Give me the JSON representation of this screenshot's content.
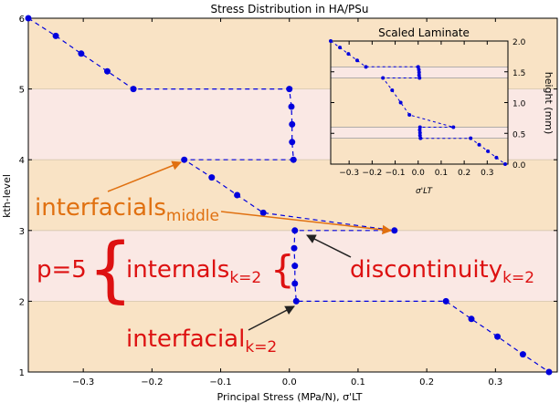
{
  "chart_data": [
    {
      "type": "line",
      "title": "Stress Distribution in HA/PSu",
      "xlabel": "Principal Stress (MPa/N), σ'LT",
      "ylabel": "kth-level",
      "xlim": [
        -0.38,
        0.39
      ],
      "ylim": [
        1,
        6
      ],
      "xticks": [
        "−0.3",
        "−0.2",
        "−0.1",
        "0.0",
        "0.1",
        "0.2",
        "0.3"
      ],
      "xtick_values": [
        -0.3,
        -0.2,
        -0.1,
        0.0,
        0.1,
        0.2,
        0.3
      ],
      "yticks": [
        "1",
        "2",
        "3",
        "4",
        "5",
        "6"
      ],
      "ytick_values": [
        1,
        2,
        3,
        4,
        5,
        6
      ],
      "bands": [
        {
          "from": 1,
          "to": 2,
          "color": "#f9e3c5"
        },
        {
          "from": 2,
          "to": 3,
          "color": "#fae8e4"
        },
        {
          "from": 3,
          "to": 4,
          "color": "#f9e3c5"
        },
        {
          "from": 4,
          "to": 5,
          "color": "#fae8e4"
        },
        {
          "from": 5,
          "to": 6,
          "color": "#f9e3c5"
        }
      ],
      "series": [
        {
          "color": "#0000dd",
          "style": "dashed-with-markers",
          "points": [
            {
              "x": -0.38,
              "y": 6.0
            },
            {
              "x": -0.34,
              "y": 5.75
            },
            {
              "x": -0.303,
              "y": 5.5
            },
            {
              "x": -0.265,
              "y": 5.25
            },
            {
              "x": -0.227,
              "y": 5.0
            },
            {
              "x": 0.0,
              "y": 5.0
            },
            {
              "x": 0.003,
              "y": 4.75
            },
            {
              "x": 0.004,
              "y": 4.5
            },
            {
              "x": 0.004,
              "y": 4.25
            },
            {
              "x": 0.006,
              "y": 4.0
            },
            {
              "x": -0.153,
              "y": 4.0
            },
            {
              "x": -0.113,
              "y": 3.75
            },
            {
              "x": -0.076,
              "y": 3.5
            },
            {
              "x": -0.038,
              "y": 3.25
            },
            {
              "x": 0.153,
              "y": 3.0
            },
            {
              "x": 0.008,
              "y": 3.0
            },
            {
              "x": 0.007,
              "y": 2.75
            },
            {
              "x": 0.008,
              "y": 2.5
            },
            {
              "x": 0.008,
              "y": 2.25
            },
            {
              "x": 0.01,
              "y": 2.0
            },
            {
              "x": 0.228,
              "y": 2.0
            },
            {
              "x": 0.265,
              "y": 1.75
            },
            {
              "x": 0.303,
              "y": 1.5
            },
            {
              "x": 0.34,
              "y": 1.25
            },
            {
              "x": 0.378,
              "y": 1.0
            }
          ]
        }
      ],
      "annotations": [
        {
          "text": "interfacials",
          "sub": "middle",
          "color": "#e07010"
        },
        {
          "text": "p=5",
          "color": "#dd1111"
        },
        {
          "text": "internals",
          "sub": "k=2",
          "color": "#dd1111"
        },
        {
          "text": "discontinuity",
          "sub": "k=2",
          "color": "#dd1111"
        },
        {
          "text": "interfacial",
          "sub": "k=2",
          "color": "#dd1111"
        }
      ]
    },
    {
      "type": "line",
      "title": "Scaled Laminate",
      "xlabel": "σ'LT",
      "ylabel": "height (mm)",
      "xlim": [
        -0.38,
        0.39
      ],
      "ylim": [
        0,
        2
      ],
      "xticks": [
        "−0.3",
        "−0.2",
        "−0.1",
        "0.0",
        "0.1",
        "0.2",
        "0.3"
      ],
      "xtick_values": [
        -0.3,
        -0.2,
        -0.1,
        0.0,
        0.1,
        0.2,
        0.3
      ],
      "yticks": [
        "0.0",
        "0.5",
        "1.0",
        "1.5",
        "2.0"
      ],
      "ytick_values": [
        0,
        0.5,
        1.0,
        1.5,
        2.0
      ],
      "bands": [
        {
          "from": 0,
          "to": 0.42,
          "color": "#f9e3c5"
        },
        {
          "from": 0.42,
          "to": 0.6,
          "color": "#fae8e4"
        },
        {
          "from": 0.6,
          "to": 1.4,
          "color": "#f9e3c5"
        },
        {
          "from": 1.4,
          "to": 1.58,
          "color": "#fae8e4"
        },
        {
          "from": 1.58,
          "to": 2.0,
          "color": "#f9e3c5"
        }
      ],
      "series": [
        {
          "color": "#0000dd",
          "style": "dashed-with-markers",
          "points": [
            {
              "x": -0.38,
              "y": 2.0
            },
            {
              "x": -0.34,
              "y": 1.895
            },
            {
              "x": -0.303,
              "y": 1.79
            },
            {
              "x": -0.265,
              "y": 1.685
            },
            {
              "x": -0.227,
              "y": 1.58
            },
            {
              "x": 0.0,
              "y": 1.58
            },
            {
              "x": 0.003,
              "y": 1.535
            },
            {
              "x": 0.004,
              "y": 1.49
            },
            {
              "x": 0.004,
              "y": 1.445
            },
            {
              "x": 0.006,
              "y": 1.4
            },
            {
              "x": -0.153,
              "y": 1.4
            },
            {
              "x": -0.113,
              "y": 1.2
            },
            {
              "x": -0.076,
              "y": 1.0
            },
            {
              "x": -0.038,
              "y": 0.8
            },
            {
              "x": 0.153,
              "y": 0.6
            },
            {
              "x": 0.008,
              "y": 0.6
            },
            {
              "x": 0.007,
              "y": 0.555
            },
            {
              "x": 0.008,
              "y": 0.51
            },
            {
              "x": 0.008,
              "y": 0.465
            },
            {
              "x": 0.01,
              "y": 0.42
            },
            {
              "x": 0.228,
              "y": 0.42
            },
            {
              "x": 0.265,
              "y": 0.315
            },
            {
              "x": 0.303,
              "y": 0.21
            },
            {
              "x": 0.34,
              "y": 0.105
            },
            {
              "x": 0.378,
              "y": 0.0
            }
          ]
        }
      ]
    }
  ]
}
